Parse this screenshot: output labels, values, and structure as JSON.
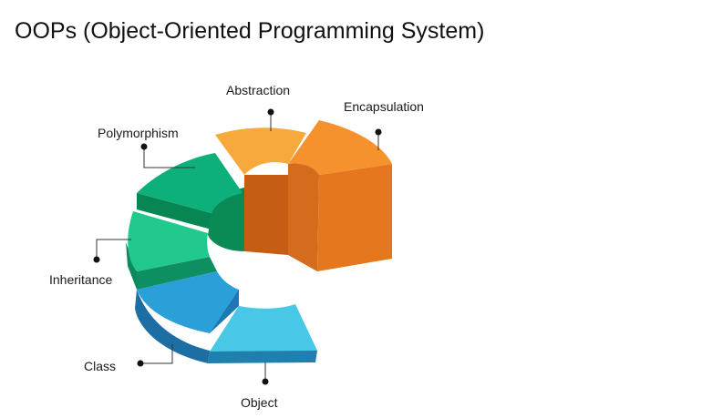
{
  "title": "OOPs (Object-Oriented Programming System)",
  "concepts": [
    {
      "id": "abstraction",
      "label": "Abstraction",
      "color": "#f7a93b"
    },
    {
      "id": "encapsulation",
      "label": "Encapsulation",
      "color": "#f5922e"
    },
    {
      "id": "polymorphism",
      "label": "Polymorphism",
      "color": "#0db07a"
    },
    {
      "id": "inheritance",
      "label": "Inheritance",
      "color": "#22c98c"
    },
    {
      "id": "class",
      "label": "Class",
      "color": "#2a9fd8"
    },
    {
      "id": "object",
      "label": "Object",
      "color": "#48c8e6"
    }
  ]
}
